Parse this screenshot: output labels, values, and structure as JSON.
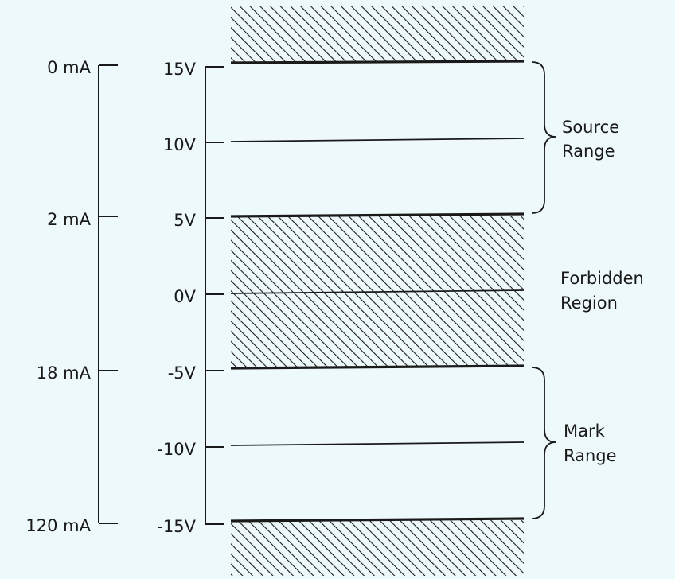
{
  "current_scale": {
    "labels": [
      "0 mA",
      "2 mA",
      "18 mA",
      "120 mA"
    ]
  },
  "voltage_scale": {
    "labels": [
      "15V",
      "10V",
      "5V",
      "0V",
      "-5V",
      "-10V",
      "-15V"
    ]
  },
  "regions": {
    "source": {
      "line1": "Source",
      "line2": "Range"
    },
    "forbidden": {
      "line1": "Forbidden",
      "line2": "Region"
    },
    "mark": {
      "line1": "Mark",
      "line2": "Range"
    }
  },
  "colors": {
    "background": "#eef9fb",
    "ink": "#1a1a1a"
  }
}
